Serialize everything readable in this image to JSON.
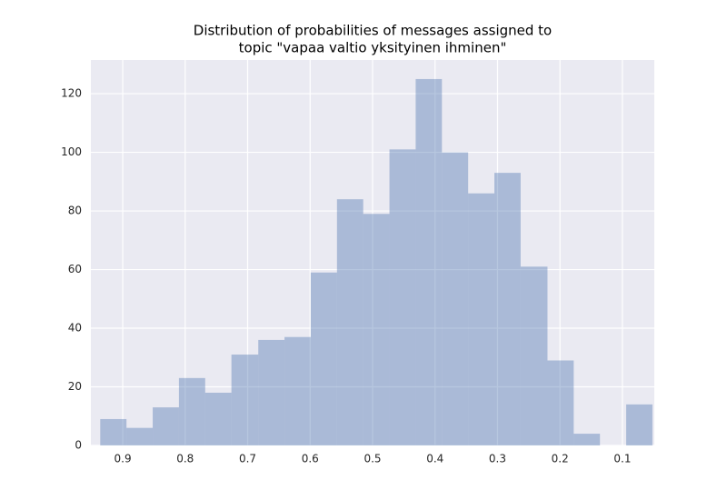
{
  "chart_data": {
    "type": "histogram",
    "title": [
      "Distribution of probabilities of messages assigned to",
      "topic \"vapaa valtio yksityinen ihminen\""
    ],
    "bins": [
      0.936,
      0.894,
      0.852,
      0.81,
      0.768,
      0.726,
      0.683,
      0.641,
      0.599,
      0.557,
      0.515,
      0.473,
      0.431,
      0.389,
      0.347,
      0.305,
      0.263,
      0.22,
      0.178,
      0.136,
      0.094,
      0.052
    ],
    "values": [
      9,
      6,
      13,
      23,
      18,
      31,
      36,
      37,
      59,
      84,
      79,
      101,
      125,
      100,
      86,
      93,
      61,
      29,
      4,
      0,
      14
    ],
    "color": "#4c72b0",
    "alpha": 0.4,
    "xlim": [
      0.951,
      0.049
    ],
    "xticks": [
      0.9,
      0.8,
      0.7,
      0.6,
      0.5,
      0.4,
      0.3,
      0.2,
      0.1
    ],
    "ylim": [
      0,
      131.5
    ],
    "yticks": [
      0,
      20,
      40,
      60,
      80,
      100,
      120
    ],
    "grid": true
  }
}
